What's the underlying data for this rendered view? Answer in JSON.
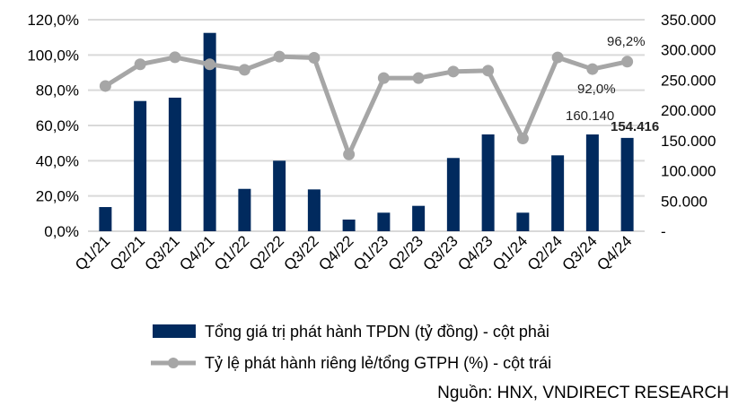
{
  "chart_data": {
    "type": "bar+line",
    "categories": [
      "Q1/21",
      "Q2/21",
      "Q3/21",
      "Q4/21",
      "Q1/22",
      "Q2/22",
      "Q3/22",
      "Q4/22",
      "Q1/23",
      "Q2/23",
      "Q3/23",
      "Q4/23",
      "Q1/24",
      "Q2/24",
      "Q3/24",
      "Q4/24"
    ],
    "series": [
      {
        "name": "Tổng giá trị phát hành TPDN (tỷ đồng) - cột phải",
        "type": "bar",
        "axis": "right",
        "color": "#012a5e",
        "values": [
          40000,
          215500,
          221000,
          328200,
          70100,
          116700,
          69200,
          19300,
          30700,
          42000,
          121200,
          160200,
          30700,
          125600,
          160140,
          154416
        ]
      },
      {
        "name": "Tỷ lệ phát hành riêng lẻ/tổng GTPH (%) - cột trái",
        "type": "line",
        "axis": "left",
        "color": "#a6a6a6",
        "values": [
          82.4,
          94.7,
          98.7,
          94.7,
          91.6,
          99.1,
          98.4,
          43.6,
          86.9,
          86.9,
          90.6,
          91.1,
          52.6,
          98.6,
          92.0,
          96.2
        ]
      }
    ],
    "left_axis": {
      "ylim": [
        0,
        120
      ],
      "ticks": [
        "0,0%",
        "20,0%",
        "40,0%",
        "60,0%",
        "80,0%",
        "100,0%",
        "120,0%"
      ]
    },
    "right_axis": {
      "ylim": [
        0,
        350000
      ],
      "ticks": [
        "-",
        "50.000",
        "100.000",
        "150.000",
        "200.000",
        "250.000",
        "300.000",
        "350.000"
      ]
    },
    "data_labels": {
      "line_q4_24": "96,2%",
      "line_q3_24": "92,0%",
      "bar_q3_24": "160.140",
      "bar_q4_24": "154.416"
    },
    "grid": true,
    "legend_position": "bottom",
    "source": "Nguồn: HNX, VNDIRECT RESEARCH"
  }
}
